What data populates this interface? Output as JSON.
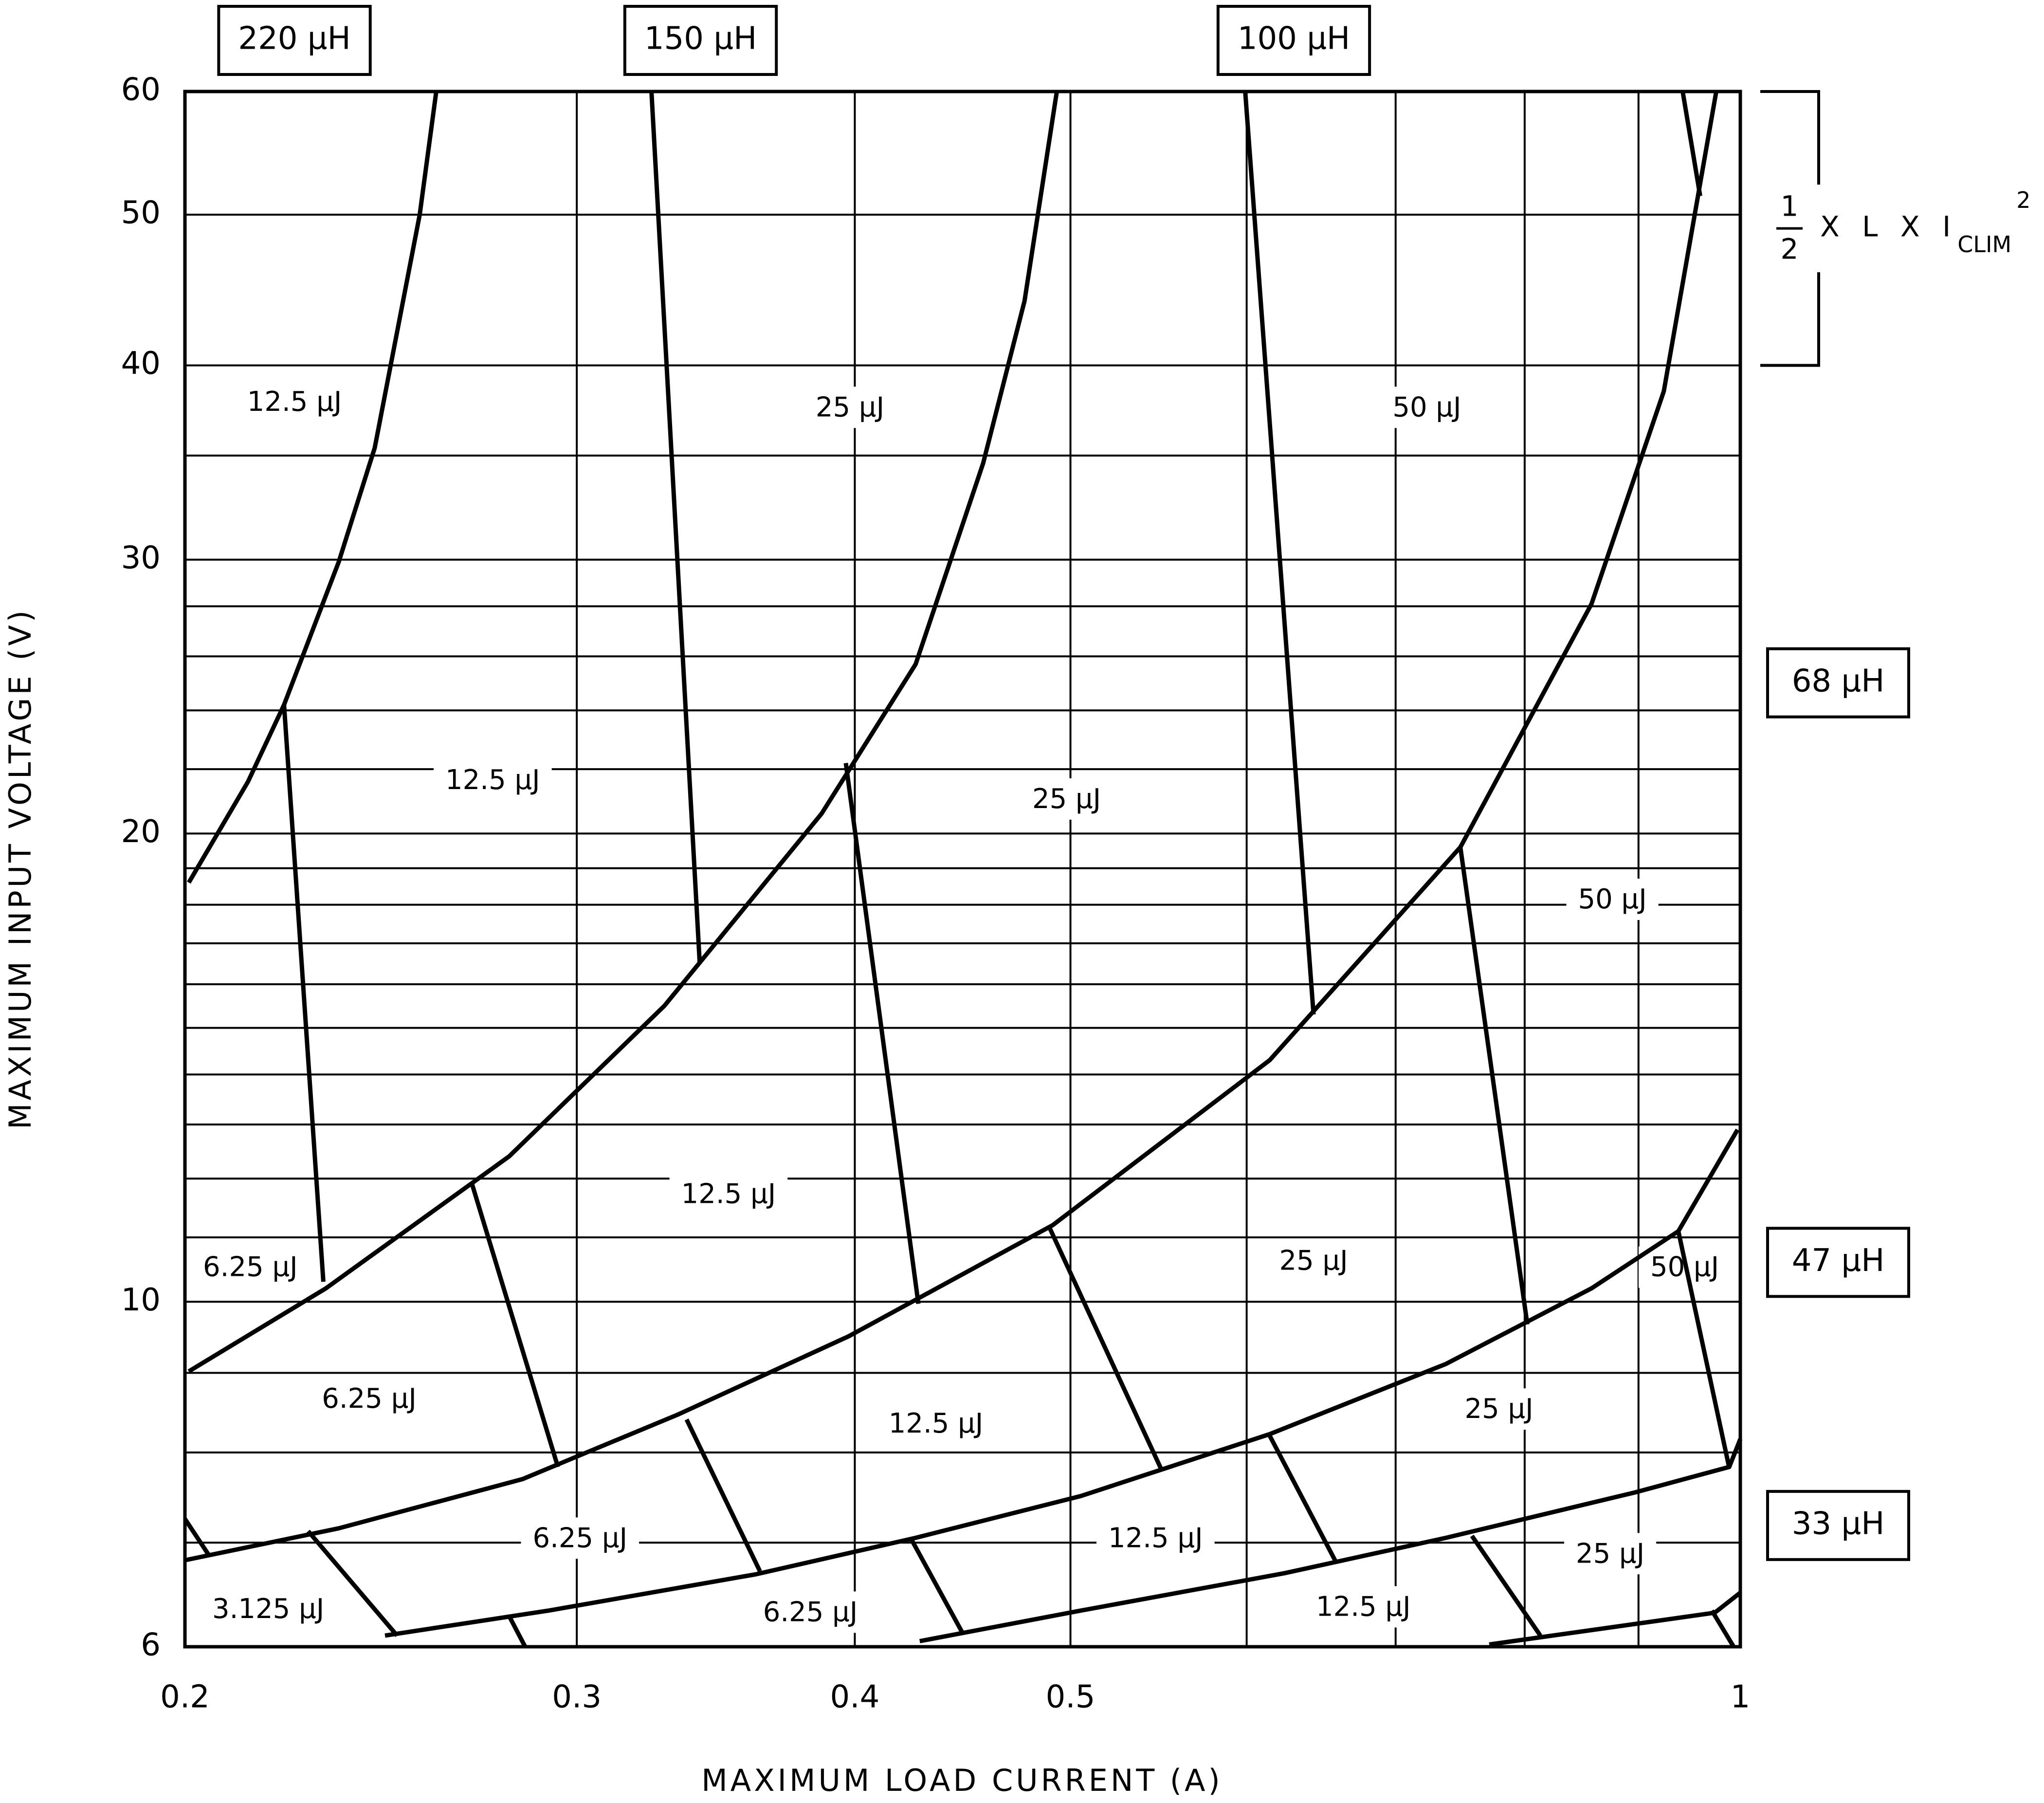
{
  "chart_data": {
    "type": "line",
    "x_label": "MAXIMUM LOAD CURRENT (A)",
    "y_label": "MAXIMUM INPUT VOLTAGE (V)",
    "xscale": "log",
    "yscale": "log",
    "xlim": [
      0.2,
      1
    ],
    "ylim": [
      6,
      60
    ],
    "xticks": [
      0.2,
      0.3,
      0.4,
      0.5,
      1
    ],
    "yticks": [
      6,
      10,
      20,
      30,
      40,
      50,
      60
    ],
    "xgrid": [
      0.6,
      0.7,
      0.8,
      0.9
    ],
    "ygrid": [
      7,
      8,
      9,
      11,
      12,
      13,
      14,
      15,
      16,
      17,
      18,
      19,
      22,
      24,
      26,
      28,
      35
    ],
    "grid": true,
    "color": "#000000",
    "series": [
      {
        "x": [
          0.2008,
          0.2135,
          0.2216,
          0.2345,
          0.2434,
          0.255,
          0.2594
        ],
        "values": [
          18.6,
          21.6,
          24.2,
          29.9,
          35.4,
          50,
          60
        ]
      },
      {
        "x": [
          0.2008,
          0.2314,
          0.2797,
          0.3285,
          0.3865,
          0.426,
          0.4568,
          0.4768,
          0.493
        ],
        "values": [
          9.02,
          10.2,
          12.4,
          15.5,
          20.6,
          25.7,
          34.6,
          44.0,
          60
        ]
      },
      {
        "x": [
          0.2,
          0.2345,
          0.2836,
          0.333,
          0.3974,
          0.4909,
          0.6145,
          0.7485,
          0.8573,
          0.9239,
          0.9754
        ],
        "values": [
          6.82,
          7.15,
          7.69,
          8.46,
          9.5,
          11.2,
          14.3,
          19.6,
          28.1,
          38.5,
          60
        ]
      },
      {
        "x": [
          0.246,
          0.2914,
          0.3612,
          0.426,
          0.5054,
          0.6145,
          0.7374,
          0.8573,
          0.9379,
          0.9971
        ],
        "values": [
          6.1,
          6.33,
          6.68,
          7.05,
          7.5,
          8.22,
          9.12,
          10.2,
          11.1,
          12.9
        ]
      },
      {
        "x": [
          0.4278,
          0.5054,
          0.6239,
          0.7374,
          0.8967,
          0.9886,
          1.0
        ],
        "values": [
          6.05,
          6.33,
          6.69,
          7.05,
          7.54,
          7.83,
          8.16
        ]
      },
      {
        "x": [
          0.7712,
          0.9739,
          1.0
        ],
        "values": [
          6.02,
          6.31,
          6.5
        ]
      },
      {
        "x": [
          0.2216,
          0.2308
        ],
        "values": [
          24.2,
          10.3
        ]
      },
      {
        "x": [
          0.3241,
          0.3407
        ],
        "values": [
          60,
          16.5
        ]
      },
      {
        "x": [
          0.2692,
          0.2942
        ],
        "values": [
          11.9,
          7.83
        ]
      },
      {
        "x": [
          0.3963,
          0.4272
        ],
        "values": [
          22.2,
          9.97
        ]
      },
      {
        "x": [
          0.5991,
          0.643
        ],
        "values": [
          60,
          15.3
        ]
      },
      {
        "x": [
          0.3361,
          0.3626
        ],
        "values": [
          8.4,
          6.71
        ]
      },
      {
        "x": [
          0.4887,
          0.5498
        ],
        "values": [
          11.2,
          7.78
        ]
      },
      {
        "x": [
          0.7485,
          0.8022
        ],
        "values": [
          19.6,
          9.67
        ]
      },
      {
        "x": [
          0.2272,
          0.2491
        ],
        "values": [
          7.12,
          6.1
        ]
      },
      {
        "x": [
          0.4242,
          0.447
        ],
        "values": [
          7.03,
          6.13
        ]
      },
      {
        "x": [
          0.6145,
          0.6578
        ],
        "values": [
          8.2,
          6.81
        ]
      },
      {
        "x": [
          0.9379,
          0.9886
        ],
        "values": [
          11.1,
          7.82
        ]
      },
      {
        "x": [
          0.2797,
          0.2844
        ],
        "values": [
          6.28,
          6.0
        ]
      },
      {
        "x": [
          0.7575,
          0.8131
        ],
        "values": [
          7.07,
          6.1
        ]
      },
      {
        "x": [
          0.971,
          0.9931
        ],
        "values": [
          6.33,
          6.0
        ]
      },
      {
        "x": [
          0.2,
          0.2049
        ],
        "values": [
          7.25,
          6.88
        ]
      },
      {
        "x": [
          0.9421,
          0.9593
        ],
        "values": [
          60,
          51.4
        ]
      }
    ],
    "annotations": [
      {
        "text": "12.5 μJ",
        "x": 0.224,
        "y": 37.8
      },
      {
        "text": "25 μJ",
        "x": 0.398,
        "y": 37.5
      },
      {
        "text": "50 μJ",
        "x": 0.723,
        "y": 37.5
      },
      {
        "text": "12.5 μJ",
        "x": 0.275,
        "y": 21.6
      },
      {
        "text": "25 μJ",
        "x": 0.498,
        "y": 21.0
      },
      {
        "text": "50 μJ",
        "x": 0.876,
        "y": 18.1
      },
      {
        "text": "12.5 μJ",
        "x": 0.351,
        "y": 11.7
      },
      {
        "text": "6.25 μJ",
        "x": 0.214,
        "y": 10.5
      },
      {
        "text": "25 μJ",
        "x": 0.643,
        "y": 10.6
      },
      {
        "text": "50 μJ",
        "x": 0.944,
        "y": 10.5
      },
      {
        "text": "6.25 μJ",
        "x": 0.242,
        "y": 8.64
      },
      {
        "text": "12.5 μJ",
        "x": 0.435,
        "y": 8.33
      },
      {
        "text": "25 μJ",
        "x": 0.779,
        "y": 8.51
      },
      {
        "text": "6.25 μJ",
        "x": 0.301,
        "y": 7.03
      },
      {
        "text": "12.5 μJ",
        "x": 0.546,
        "y": 7.03
      },
      {
        "text": "25 μJ",
        "x": 0.874,
        "y": 6.87
      },
      {
        "text": "3.125 μJ",
        "x": 0.218,
        "y": 6.33
      },
      {
        "text": "6.25 μJ",
        "x": 0.382,
        "y": 6.3
      },
      {
        "text": "12.5 μJ",
        "x": 0.677,
        "y": 6.35
      }
    ],
    "inductor_labels": [
      {
        "text": "220 μH",
        "x": 0.224
      },
      {
        "text": "150 μH",
        "x": 0.341
      },
      {
        "text": "100 μH",
        "x": 0.63
      },
      {
        "text": "68 μH",
        "y": 25
      },
      {
        "text": "47 μH",
        "y": 10.6
      },
      {
        "text": "33 μH",
        "y": 7.18
      }
    ],
    "formula": {
      "numerator": "1",
      "denominator": "2",
      "text": "X L X I",
      "subscript": "CLIM",
      "superscript": "2",
      "bracket": [
        40,
        60
      ]
    }
  }
}
